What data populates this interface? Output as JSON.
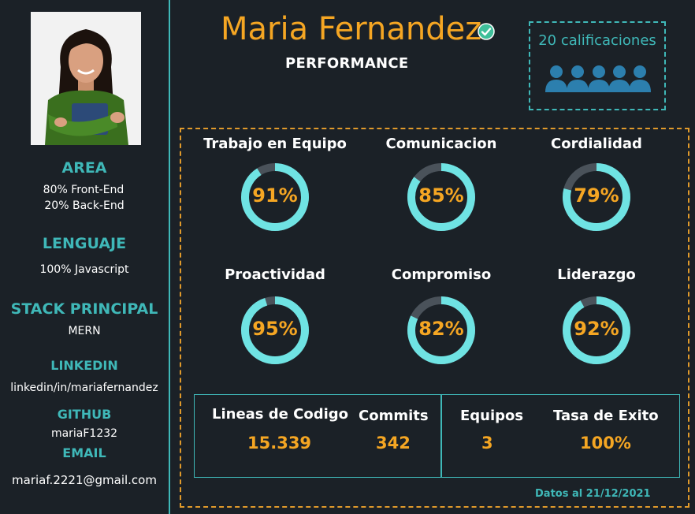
{
  "profile": {
    "name": "Maria Fernandez",
    "subtitle": "PERFORMANCE",
    "ratings_label": "20 calificaciones"
  },
  "sidebar": {
    "area_title": "AREA",
    "area_line1": "80% Front-End",
    "area_line2": "20% Back-End",
    "lang_title": "LENGUAJE",
    "lang_value": "100% Javascript",
    "stack_title": "STACK PRINCIPAL",
    "stack_value": "MERN",
    "linkedin_title": "LINKEDIN",
    "linkedin_value": "linkedin/in/mariafernandez",
    "github_title": "GITHUB",
    "github_value": "mariaF1232",
    "email_title": "EMAIL",
    "email_value": "mariaf.2221@gmail.com"
  },
  "metrics": [
    {
      "label": "Trabajo en Equipo",
      "value": 91,
      "display": "91%"
    },
    {
      "label": "Comunicacion",
      "value": 85,
      "display": "85%"
    },
    {
      "label": "Cordialidad",
      "value": 79,
      "display": "79%"
    },
    {
      "label": "Proactividad",
      "value": 95,
      "display": "95%"
    },
    {
      "label": "Compromiso",
      "value": 82,
      "display": "82%"
    },
    {
      "label": "Liderazgo",
      "value": 92,
      "display": "92%"
    }
  ],
  "stats": {
    "lines_label": "Lineas de Codigo",
    "lines_value": "15.339",
    "commits_label": "Commits",
    "commits_value": "342",
    "teams_label": "Equipos",
    "teams_value": "3",
    "success_label": "Tasa de Exito",
    "success_value": "100%"
  },
  "footer": {
    "date_note": "Datos al 21/12/2021"
  },
  "colors": {
    "accent": "#f5a623",
    "teal": "#3fb8b8",
    "gauge_fill": "#6fe3e3",
    "gauge_track": "#4a525a",
    "background": "#1b2127"
  },
  "icons": {
    "verified": "check-circle-icon",
    "people": "people-group-icon"
  }
}
